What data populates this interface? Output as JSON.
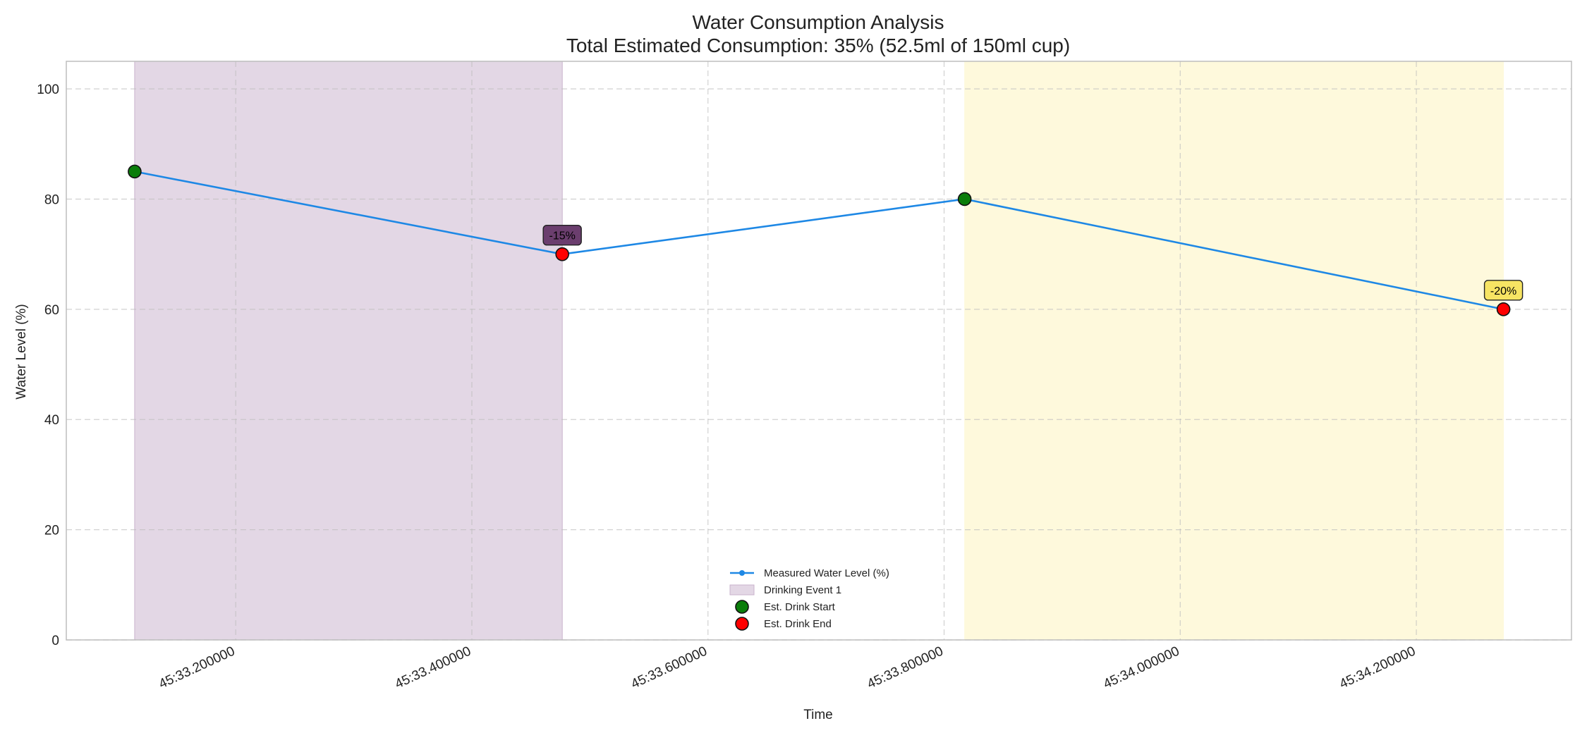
{
  "chart_data": {
    "type": "line",
    "title": "Water Consumption Analysis",
    "subtitle": "Total Estimated Consumption: 35% (52.5ml of 150ml cup)",
    "xlabel": "Time",
    "ylabel": "Water Level (%)",
    "ylim": [
      0,
      105
    ],
    "yticks": [
      0,
      20,
      40,
      60,
      80,
      100
    ],
    "xlim": [
      33.0565,
      34.3314
    ],
    "xticks": [
      {
        "value": 33.2,
        "label": "45:33.200000"
      },
      {
        "value": 33.4,
        "label": "45:33.400000"
      },
      {
        "value": 33.6,
        "label": "45:33.600000"
      },
      {
        "value": 33.8,
        "label": "45:33.800000"
      },
      {
        "value": 34.0,
        "label": "45:34.000000"
      },
      {
        "value": 34.2,
        "label": "45:34.200000"
      }
    ],
    "grid": true,
    "series": [
      {
        "name": "Measured Water Level (%)",
        "color": "#1e88e5",
        "x": [
          33.1144,
          33.4766,
          33.8174,
          34.2738
        ],
        "y": [
          85,
          70,
          80,
          60
        ]
      }
    ],
    "spans": [
      {
        "name": "Drinking Event 1",
        "start": 33.1144,
        "end": 33.4766,
        "color": "#e3d7e5",
        "edge": "#c9b3cd"
      },
      {
        "name": "",
        "start": 33.8174,
        "end": 34.2738,
        "color": "#fef9dc",
        "edge": "#fef9dc"
      }
    ],
    "start_points": {
      "name": "Est. Drink Start",
      "color": "#0a7d0a",
      "x": [
        33.1144,
        33.8174
      ],
      "y": [
        85,
        80
      ]
    },
    "end_points": {
      "name": "Est. Drink End",
      "color": "#ff0000",
      "x": [
        33.4766,
        34.2738
      ],
      "y": [
        70,
        60
      ]
    },
    "annotations": [
      {
        "text": "-15%",
        "x": 33.4766,
        "y": 70,
        "bg": "#6b3e6e"
      },
      {
        "text": "-20%",
        "x": 34.2738,
        "y": 60,
        "bg": "#f7e463"
      }
    ],
    "legend": {
      "placement": "lower-center",
      "entries": [
        {
          "label": "Measured Water Level (%)",
          "kind": "line"
        },
        {
          "label": "Drinking Event 1",
          "kind": "patch"
        },
        {
          "label": "Est. Drink Start",
          "kind": "start"
        },
        {
          "label": "Est. Drink End",
          "kind": "end"
        }
      ]
    }
  }
}
